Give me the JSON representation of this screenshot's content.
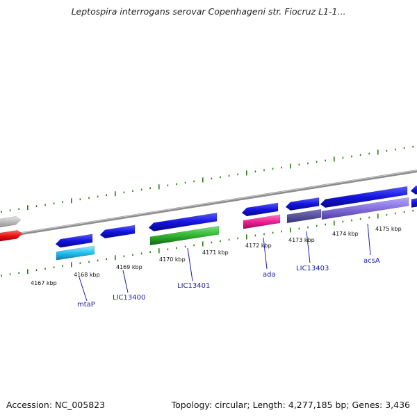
{
  "title": "Leptospira interrogans serovar Copenhageni str. Fiocruz L1-1...",
  "accession": "Accession: NC_005823",
  "topology": "Topology: circular; Length: 4,277,185 bp; Genes: 3,436",
  "colors": {
    "backbone": "#8c8c8c",
    "tick": "#2a7a12",
    "forward_gene": "#1414e0",
    "label_line": "#1a1aa6",
    "label_text": "#1a1aa6"
  },
  "scale_labels": [
    "4167 kbp",
    "4168 kbp",
    "4169 kbp",
    "4170 kbp",
    "4171 kbp",
    "4172 kbp",
    "4173 kbp",
    "4174 kbp",
    "4175 kbp"
  ],
  "gene_labels": [
    "mtaP",
    "LIC13400",
    "LIC13401",
    "ada",
    "LIC13403",
    "acsA"
  ]
}
